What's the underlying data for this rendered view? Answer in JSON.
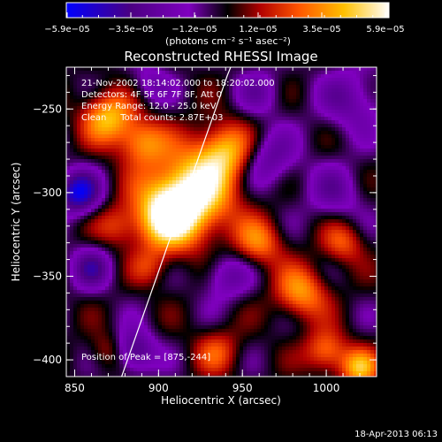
{
  "chart_data": {
    "type": "heatmap",
    "title": "Reconstructed RHESSI Image",
    "xlabel": "Heliocentric X (arcsec)",
    "ylabel": "Heliocentric Y (arcsec)",
    "xlim": [
      845,
      1030
    ],
    "ylim": [
      -410,
      -225
    ],
    "x_ticks": [
      {
        "value": 850,
        "label": "850"
      },
      {
        "value": 900,
        "label": "900"
      },
      {
        "value": 950,
        "label": "950"
      },
      {
        "value": 1000,
        "label": "1000"
      }
    ],
    "y_ticks": [
      {
        "value": -250,
        "label": "−250"
      },
      {
        "value": -300,
        "label": "−300"
      },
      {
        "value": -350,
        "label": "−350"
      },
      {
        "value": -400,
        "label": "−400"
      }
    ],
    "colorbar": {
      "unit_label": "(photons cm⁻² s⁻¹ asec⁻²)",
      "range": [
        -5.9e-05,
        5.9e-05
      ],
      "tick_labels": [
        "−5.9e−05",
        "−3.5e−05",
        "−1.2e−05",
        "1.2e−05",
        "3.5e−05",
        "5.9e−05"
      ],
      "colors": [
        "#0000ff",
        "#4b0082",
        "#8000c0",
        "#000000",
        "#b00000",
        "#ff5500",
        "#ffc000",
        "#ffffff"
      ]
    },
    "annotations": [
      "21-Nov-2002 18:14:02.000 to 18:20:02.000",
      "Detectors: 4F 5F 6F 7F 8F, Att 0",
      "Energy Range: 12.0 - 25.0 keV",
      "Clean     Total counts: 2.87E+03"
    ],
    "peak_label": "Position of Peak = [875,-244]",
    "limb_curve": [
      [
        878,
        -410
      ],
      [
        885,
        -390
      ],
      [
        892,
        -370
      ],
      [
        899,
        -350
      ],
      [
        906,
        -330
      ],
      [
        913,
        -310
      ],
      [
        920,
        -290
      ],
      [
        927,
        -270
      ],
      [
        934,
        -250
      ],
      [
        941,
        -230
      ],
      [
        943,
        -225
      ]
    ],
    "field_sources": [
      {
        "x": 920,
        "y": -300,
        "amplitude": 1.0,
        "width": 18
      },
      {
        "x": 905,
        "y": -315,
        "amplitude": 0.85,
        "width": 14
      },
      {
        "x": 940,
        "y": -275,
        "amplitude": 0.7,
        "width": 12
      },
      {
        "x": 870,
        "y": -255,
        "amplitude": 0.75,
        "width": 11
      },
      {
        "x": 890,
        "y": -270,
        "amplitude": 0.6,
        "width": 10
      },
      {
        "x": 960,
        "y": -330,
        "amplitude": 0.55,
        "width": 10
      },
      {
        "x": 985,
        "y": -360,
        "amplitude": 0.65,
        "width": 11
      },
      {
        "x": 1010,
        "y": -330,
        "amplitude": 0.45,
        "width": 9
      },
      {
        "x": 1000,
        "y": -395,
        "amplitude": 0.6,
        "width": 9
      },
      {
        "x": 1020,
        "y": -405,
        "amplitude": 0.7,
        "width": 8
      },
      {
        "x": 875,
        "y": -320,
        "amplitude": 0.35,
        "width": 9
      },
      {
        "x": 935,
        "y": -395,
        "amplitude": 0.4,
        "width": 10
      },
      {
        "x": 895,
        "y": -345,
        "amplitude": 0.3,
        "width": 8
      },
      {
        "x": 870,
        "y": -395,
        "amplitude": 0.35,
        "width": 8
      },
      {
        "x": 852,
        "y": -300,
        "amplitude": -0.85,
        "width": 9
      },
      {
        "x": 860,
        "y": -345,
        "amplitude": -0.5,
        "width": 9
      },
      {
        "x": 885,
        "y": -395,
        "amplitude": -0.65,
        "width": 9
      },
      {
        "x": 965,
        "y": -280,
        "amplitude": -0.45,
        "width": 12
      },
      {
        "x": 1015,
        "y": -245,
        "amplitude": -0.4,
        "width": 14
      },
      {
        "x": 1005,
        "y": -300,
        "amplitude": -0.35,
        "width": 12
      },
      {
        "x": 940,
        "y": -350,
        "amplitude": -0.4,
        "width": 10
      },
      {
        "x": 895,
        "y": -235,
        "amplitude": -0.3,
        "width": 9
      },
      {
        "x": 960,
        "y": -240,
        "amplitude": -0.3,
        "width": 10
      }
    ]
  },
  "footer": {
    "timestamp": "18-Apr-2013 06:13"
  }
}
